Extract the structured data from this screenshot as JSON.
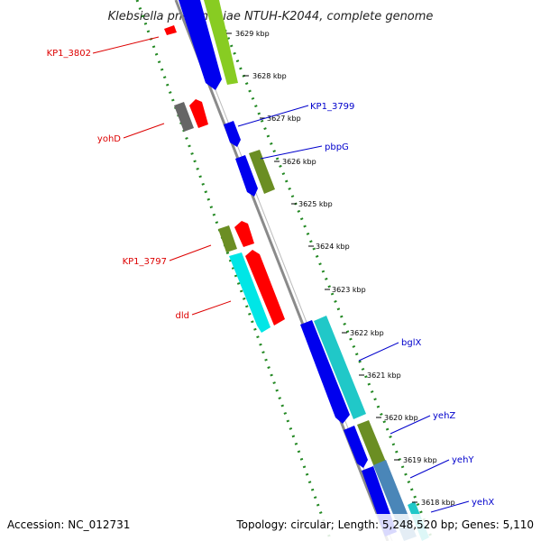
{
  "title": "Klebsiella pneumoniae NTUH-K2044, complete genome",
  "footer": {
    "accession": "Accession: NC_012731",
    "summary": "Topology: circular; Length: 5,248,520 bp; Genes: 5,110"
  },
  "colors": {
    "forward_label": "#dd0000",
    "reverse_label": "#0000cc",
    "backbone": "#888888",
    "gc_dots": "#228822"
  },
  "kbp_ticks": [
    "3629 kbp",
    "3628 kbp",
    "3627 kbp",
    "3626 kbp",
    "3625 kbp",
    "3624 kbp",
    "3623 kbp",
    "3622 kbp",
    "3621 kbp",
    "3620 kbp",
    "3619 kbp",
    "3618 kbp"
  ],
  "gene_labels": [
    "KP1_3802",
    "yohD",
    "KP1_3797",
    "dld",
    "KP1_3799",
    "pbpG",
    "bglX",
    "yehZ",
    "yehY",
    "yehX"
  ]
}
